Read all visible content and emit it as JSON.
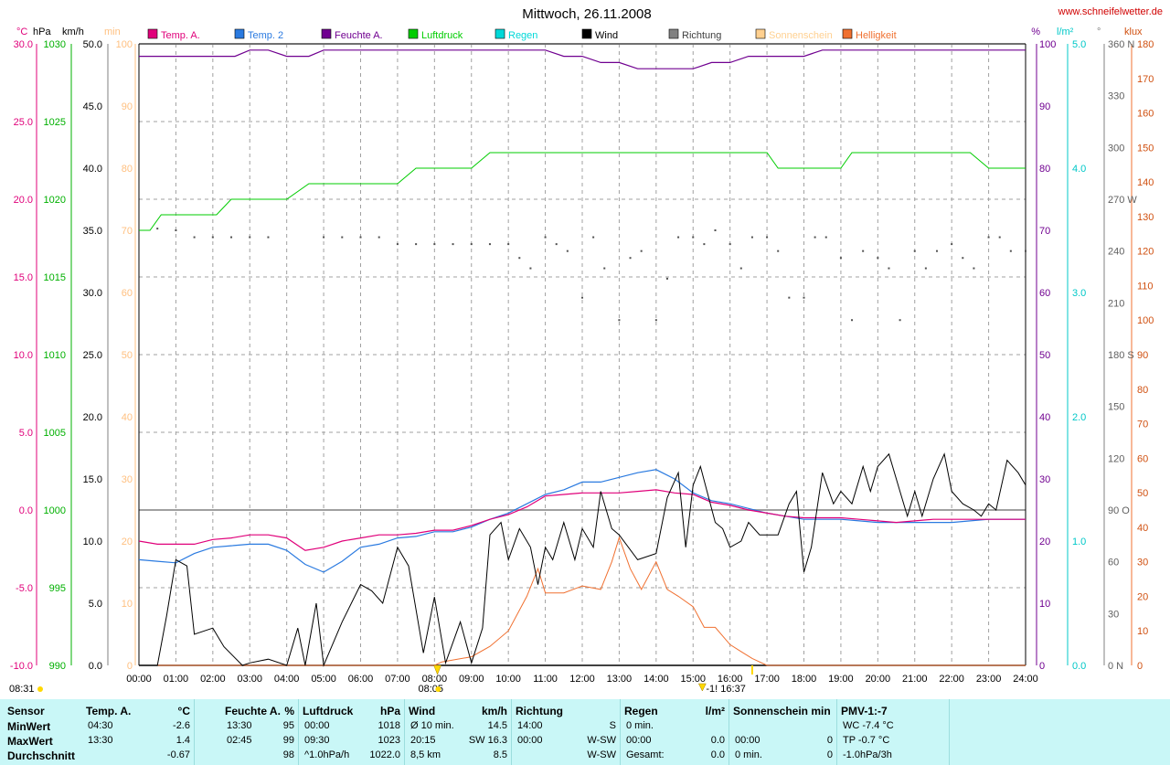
{
  "title": "Mittwoch, 26.11.2008",
  "website": "www.schneifelwetter.de",
  "colors": {
    "temp_a": "#e0007a",
    "temp_2": "#2a7ae0",
    "feuchte": "#700090",
    "luftdruck": "#00cc00",
    "regen": "#00d8d8",
    "wind": "#000000",
    "richtung": "#808080",
    "sonnenschein": "#ffc080",
    "helligkeit": "#f07030",
    "stats_bg": "#c9f7f7"
  },
  "legend": [
    {
      "label": "Temp. A.",
      "color": "#e0007a"
    },
    {
      "label": "Temp. 2",
      "color": "#2a7ae0"
    },
    {
      "label": "Feuchte A.",
      "color": "#700090"
    },
    {
      "label": "Luftdruck",
      "color": "#00cc00"
    },
    {
      "label": "Regen",
      "color": "#00d8d8"
    },
    {
      "label": "Wind",
      "color": "#000000"
    },
    {
      "label": "Richtung",
      "color": "#808080"
    },
    {
      "label": "Sonnenschein",
      "color": "#ffd090"
    },
    {
      "label": "Helligkeit",
      "color": "#f07030"
    }
  ],
  "axis_units": {
    "temp": "°C",
    "hpa": "hPa",
    "kmh": "km/h",
    "min": "min",
    "pct": "%",
    "rain": "l/m²",
    "dir": "°",
    "klux": "klux"
  },
  "axis_ticks": {
    "temp": [
      "30.0",
      "25.0",
      "20.0",
      "15.0",
      "10.0",
      "5.0",
      "0.0",
      "-5.0",
      "-10.0"
    ],
    "hpa": [
      "1030",
      "1025",
      "1020",
      "1015",
      "1010",
      "1005",
      "1000",
      "995",
      "990"
    ],
    "kmh": [
      "50.0",
      "45.0",
      "40.0",
      "35.0",
      "30.0",
      "25.0",
      "20.0",
      "15.0",
      "10.0",
      "5.0",
      "0.0"
    ],
    "min": [
      "100",
      "90",
      "80",
      "70",
      "60",
      "50",
      "40",
      "30",
      "20",
      "10",
      "0"
    ],
    "pct": [
      "100",
      "90",
      "80",
      "70",
      "60",
      "50",
      "40",
      "30",
      "20",
      "10",
      "0"
    ],
    "rain": [
      "5.0",
      "4.0",
      "3.0",
      "2.0",
      "1.0",
      "0.0"
    ],
    "dir": [
      "360 N",
      "330",
      "300",
      "270 W",
      "240",
      "210",
      "180 S",
      "150",
      "120",
      "90 O",
      "60",
      "30",
      "0 N"
    ],
    "klux": [
      "180",
      "170",
      "160",
      "150",
      "140",
      "130",
      "120",
      "110",
      "100",
      "90",
      "80",
      "70",
      "60",
      "50",
      "40",
      "30",
      "20",
      "10",
      "0"
    ],
    "x": [
      "00:00",
      "01:00",
      "02:00",
      "03:00",
      "04:00",
      "05:00",
      "06:00",
      "07:00",
      "08:00",
      "09:00",
      "10:00",
      "11:00",
      "12:00",
      "13:00",
      "14:00",
      "15:00",
      "16:00",
      "17:00",
      "18:00",
      "19:00",
      "20:00",
      "21:00",
      "22:00",
      "23:00",
      "24:00"
    ]
  },
  "sun_markers": {
    "sunrise_left": "08:31",
    "sunrise": "08:05",
    "sunset_mid": "-1! 16:37"
  },
  "chart_data": {
    "type": "line",
    "title": "Mittwoch, 26.11.2008",
    "x_unit": "hours",
    "xlim": [
      0,
      24
    ],
    "series": [
      {
        "name": "Temp. A.",
        "unit": "°C",
        "x": [
          0,
          0.5,
          1,
          1.5,
          2,
          2.5,
          3,
          3.5,
          4,
          4.5,
          5,
          5.5,
          6,
          6.5,
          7,
          7.5,
          8,
          8.5,
          9,
          9.5,
          10,
          10.5,
          11,
          11.5,
          12,
          12.5,
          13,
          13.5,
          14,
          14.5,
          15,
          15.5,
          16,
          16.5,
          17,
          17.5,
          18,
          18.5,
          19,
          19.5,
          20,
          20.5,
          21,
          21.5,
          22,
          22.5,
          23,
          23.5,
          24
        ],
        "y": [
          -2.0,
          -2.2,
          -2.2,
          -2.2,
          -1.9,
          -1.8,
          -1.6,
          -1.6,
          -1.8,
          -2.6,
          -2.4,
          -2.0,
          -1.8,
          -1.6,
          -1.6,
          -1.5,
          -1.3,
          -1.3,
          -1.0,
          -0.6,
          -0.3,
          0.2,
          0.9,
          1.0,
          1.1,
          1.1,
          1.1,
          1.2,
          1.3,
          1.1,
          1.0,
          0.5,
          0.3,
          0.0,
          -0.2,
          -0.4,
          -0.5,
          -0.5,
          -0.5,
          -0.6,
          -0.7,
          -0.8,
          -0.7,
          -0.6,
          -0.6,
          -0.6,
          -0.6,
          -0.6,
          -0.6
        ]
      },
      {
        "name": "Temp. 2",
        "unit": "°C",
        "x": [
          0,
          0.5,
          1,
          1.5,
          2,
          2.5,
          3,
          3.5,
          4,
          4.5,
          5,
          5.5,
          6,
          6.5,
          7,
          7.5,
          8,
          8.5,
          9,
          9.5,
          10,
          10.5,
          11,
          11.5,
          12,
          12.5,
          13,
          13.5,
          14,
          14.5,
          15,
          15.5,
          16,
          16.5,
          17,
          17.5,
          18,
          18.5,
          19,
          19.5,
          20,
          20.5,
          21,
          21.5,
          22,
          22.5,
          23,
          23.5,
          24
        ],
        "y": [
          -3.2,
          -3.3,
          -3.4,
          -2.8,
          -2.4,
          -2.3,
          -2.2,
          -2.2,
          -2.6,
          -3.5,
          -4.0,
          -3.3,
          -2.4,
          -2.2,
          -1.8,
          -1.7,
          -1.4,
          -1.4,
          -1.1,
          -0.6,
          -0.2,
          0.4,
          1.0,
          1.3,
          1.8,
          1.8,
          2.1,
          2.4,
          2.6,
          2.0,
          1.1,
          0.6,
          0.4,
          0.1,
          -0.2,
          -0.4,
          -0.6,
          -0.6,
          -0.6,
          -0.7,
          -0.8,
          -0.8,
          -0.8,
          -0.8,
          -0.8,
          -0.7,
          -0.6,
          -0.6,
          -0.6
        ]
      },
      {
        "name": "Feuchte A.",
        "unit": "%",
        "x": [
          0,
          1,
          2,
          2.6,
          3,
          3.5,
          4,
          4.6,
          5,
          6,
          7,
          8,
          9,
          10,
          10.5,
          11,
          11.5,
          12,
          12.5,
          13,
          13.5,
          14,
          14.5,
          15,
          15.5,
          16,
          16.5,
          17,
          17.5,
          18,
          18.5,
          19,
          19.5,
          20,
          21,
          22,
          23,
          24
        ],
        "y": [
          98,
          98,
          98,
          98,
          99,
          99,
          98,
          98,
          99,
          99,
          99,
          99,
          99,
          99,
          99,
          99,
          98,
          98,
          97,
          97,
          96,
          96,
          96,
          96,
          97,
          97,
          98,
          98,
          98,
          98,
          99,
          99,
          99,
          99,
          99,
          99,
          99,
          99
        ]
      },
      {
        "name": "Luftdruck",
        "unit": "hPa",
        "x": [
          0,
          0.3,
          0.6,
          1,
          2,
          2.1,
          2.5,
          3,
          4,
          4.6,
          5,
          6,
          7,
          7.5,
          8,
          9,
          9.5,
          10,
          11,
          12,
          13,
          14,
          15,
          16,
          17,
          17.3,
          18,
          19,
          19.3,
          20,
          21,
          22,
          22.5,
          23,
          24
        ],
        "y": [
          1018,
          1018,
          1019,
          1019,
          1019,
          1019,
          1020,
          1020,
          1020,
          1021,
          1021,
          1021,
          1021,
          1022,
          1022,
          1022,
          1023,
          1023,
          1023,
          1023,
          1023,
          1023,
          1023,
          1023,
          1023,
          1022,
          1022,
          1022,
          1023,
          1023,
          1023,
          1023,
          1023,
          1022,
          1022
        ]
      },
      {
        "name": "Wind",
        "unit": "km/h",
        "x": [
          0,
          0.5,
          0.75,
          1,
          1.3,
          1.5,
          2,
          2.3,
          2.8,
          3,
          3.5,
          4,
          4.3,
          4.5,
          4.8,
          5,
          5.5,
          6,
          6.3,
          6.6,
          7,
          7.3,
          7.7,
          8,
          8.3,
          8.7,
          9,
          9.3,
          9.5,
          9.8,
          10,
          10.3,
          10.6,
          10.8,
          11,
          11.2,
          11.5,
          11.8,
          12,
          12.3,
          12.5,
          12.8,
          13,
          13.5,
          14,
          14.3,
          14.6,
          14.8,
          15,
          15.2,
          15.6,
          15.8,
          16,
          16.3,
          16.5,
          16.8,
          17,
          17.3,
          17.6,
          17.8,
          18,
          18.2,
          18.5,
          18.8,
          19,
          19.3,
          19.6,
          19.8,
          20,
          20.3,
          20.6,
          20.8,
          21,
          21.2,
          21.5,
          21.8,
          22,
          22.3,
          22.6,
          22.8,
          23,
          23.2,
          23.5,
          23.8,
          24
        ],
        "y": [
          0,
          0,
          4,
          8.5,
          8,
          2.5,
          3,
          1.5,
          0,
          0.2,
          0.5,
          0,
          3,
          0,
          5,
          0,
          3.5,
          6.5,
          6,
          5,
          9.5,
          8,
          1,
          5.5,
          0.2,
          3.5,
          0.2,
          3,
          10.5,
          11.5,
          8.5,
          11,
          9.5,
          6.5,
          9.5,
          8.5,
          11.5,
          8.5,
          11,
          9.5,
          14,
          11,
          10.5,
          8.5,
          9,
          13.5,
          15.5,
          9.5,
          14.5,
          16,
          11.5,
          11,
          9.5,
          10,
          11.5,
          10.5,
          10.5,
          10.5,
          13,
          14,
          7.5,
          9.5,
          15.5,
          13,
          14,
          13,
          16,
          14,
          16,
          17,
          14,
          12,
          14,
          12,
          15,
          17,
          14,
          13,
          12.5,
          12,
          13,
          12.5,
          16.5,
          15.5,
          14.5
        ]
      },
      {
        "name": "Helligkeit",
        "unit": "klux",
        "x": [
          0,
          8,
          8.2,
          9,
          9.5,
          10,
          10.5,
          10.8,
          11,
          11.5,
          12,
          12.5,
          12.8,
          13,
          13.3,
          13.6,
          14,
          14.3,
          14.6,
          15,
          15.3,
          15.6,
          16,
          16.3,
          16.6,
          17,
          24
        ],
        "y": [
          0,
          0,
          1,
          2.5,
          5.5,
          10,
          20,
          28,
          21,
          21,
          23,
          22,
          30,
          37,
          28,
          22,
          30,
          22,
          20,
          17,
          11,
          11,
          6,
          4,
          2,
          0,
          0
        ]
      },
      {
        "name": "Richtung",
        "unit": "°",
        "x": [
          0.5,
          1,
          1.5,
          2,
          2.5,
          3,
          3.5,
          5,
          5.5,
          6,
          6.5,
          7,
          7.5,
          8,
          8.5,
          9,
          9.5,
          10,
          10.3,
          10.6,
          11,
          11.3,
          11.6,
          12,
          12.3,
          12.6,
          13,
          13.3,
          13.6,
          14,
          14.3,
          14.6,
          15,
          15.3,
          15.6,
          16,
          16.3,
          16.6,
          17,
          17.3,
          17.6,
          18,
          18.3,
          18.6,
          19,
          19.3,
          19.6,
          20,
          20.3,
          20.6,
          21,
          21.3,
          21.6,
          22,
          22.3,
          22.6,
          23,
          23.3,
          23.6,
          24
        ],
        "y": [
          253,
          252,
          248,
          248,
          248,
          248,
          248,
          248,
          248,
          248,
          248,
          244,
          244,
          244,
          244,
          244,
          244,
          244,
          236,
          230,
          248,
          244,
          240,
          213,
          248,
          230,
          200,
          236,
          240,
          200,
          224,
          248,
          248,
          244,
          252,
          244,
          230,
          248,
          248,
          240,
          213,
          213,
          248,
          248,
          236,
          200,
          240,
          236,
          230,
          200,
          240,
          230,
          240,
          244,
          236,
          230,
          248,
          248,
          240,
          240
        ]
      }
    ],
    "grid": true
  },
  "stats": {
    "row_labels": [
      "Sensor",
      "MinWert",
      "MaxWert",
      "Durchschnitt"
    ],
    "columns": [
      {
        "name": "Temp. A.",
        "unit": "°C",
        "rows": [
          [
            "04:30",
            "-2.6"
          ],
          [
            "13:30",
            "1.4"
          ],
          [
            "",
            "-0.67"
          ]
        ]
      },
      {
        "name": "Feuchte A.",
        "unit": "%",
        "rows": [
          [
            "13:30",
            "95"
          ],
          [
            "02:45",
            "99"
          ],
          [
            "",
            "98"
          ]
        ]
      },
      {
        "name": "Luftdruck",
        "unit": "hPa",
        "rows": [
          [
            "00:00",
            "1018"
          ],
          [
            "09:30",
            "1023"
          ],
          [
            "^1.0hPa/h",
            "1022.0"
          ]
        ]
      },
      {
        "name": "Wind",
        "unit": "km/h",
        "rows": [
          [
            "Ø 10 min.",
            "14.5"
          ],
          [
            "20:15",
            "SW 16.3"
          ],
          [
            "8,5 km",
            "8.5"
          ]
        ]
      },
      {
        "name": "Richtung",
        "unit": "",
        "rows": [
          [
            "14:00",
            "S"
          ],
          [
            "00:00",
            "W-SW"
          ],
          [
            "",
            "W-SW"
          ]
        ]
      },
      {
        "name": "Regen",
        "unit": "l/m²",
        "rows": [
          [
            "0 min.",
            ""
          ],
          [
            "00:00",
            "0.0"
          ],
          [
            "Gesamt:",
            "0.0"
          ]
        ]
      },
      {
        "name": "Sonnenschein min",
        "unit": "",
        "rows": [
          [
            "",
            ""
          ],
          [
            "00:00",
            "0"
          ],
          [
            "0 min.",
            "0"
          ]
        ]
      },
      {
        "name": "PMV-1:-7",
        "unit": "",
        "rows": [
          [
            "WC -7.4 °C",
            ""
          ],
          [
            "TP -0.7 °C",
            ""
          ],
          [
            "-1.0hPa/3h",
            ""
          ]
        ]
      }
    ]
  }
}
